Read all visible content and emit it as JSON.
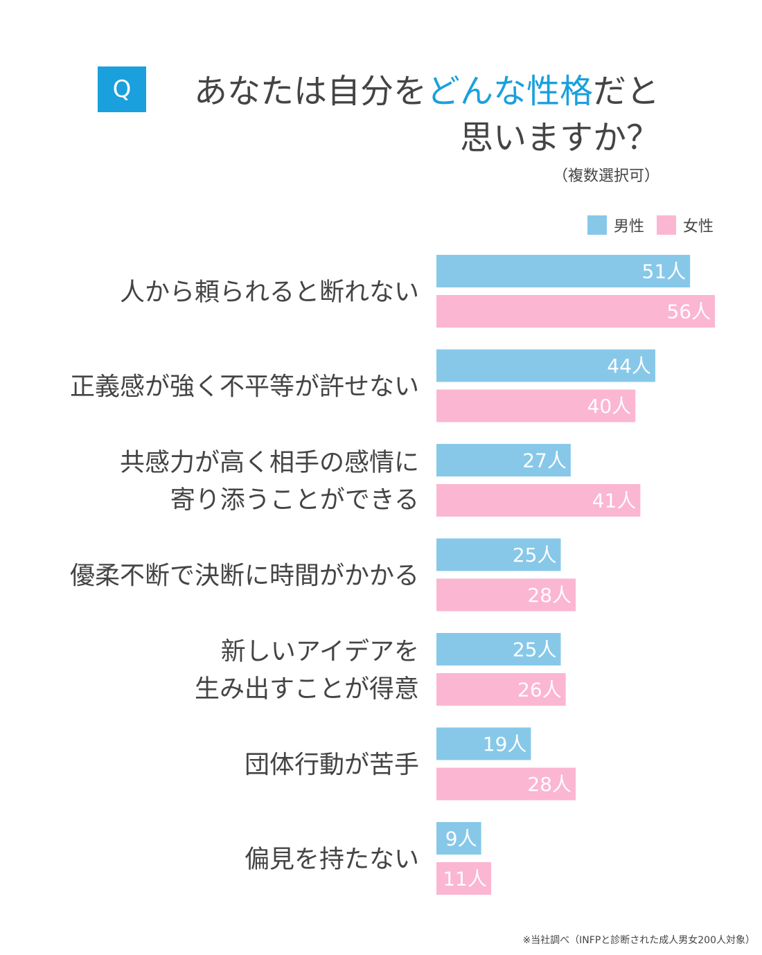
{
  "header": {
    "badge": "Q",
    "title_pre": "あなたは自分を",
    "title_accent": "どんな性格",
    "title_post": "だと",
    "title_line2": "思いますか？",
    "note": "（複数選択可）"
  },
  "legend": {
    "male_label": "男性",
    "female_label": "女性"
  },
  "colors": {
    "male": "#87c8e9",
    "female": "#fbb6d2",
    "accent": "#1aa0dd",
    "text": "#444444"
  },
  "footnote": "※当社調べ（INFPと診断された成人男女200人対象）",
  "chart_data": {
    "type": "bar",
    "orientation": "horizontal",
    "unit": "人",
    "categories": [
      [
        "人から頼られると断れない"
      ],
      [
        "正義感が強く不平等が許せない"
      ],
      [
        "共感力が高く相手の感情に",
        "寄り添うことができる"
      ],
      [
        "優柔不断で決断に時間がかかる"
      ],
      [
        "新しいアイデアを",
        "生み出すことが得意"
      ],
      [
        "団体行動が苦手"
      ],
      [
        "偏見を持たない"
      ]
    ],
    "series": [
      {
        "name": "男性",
        "values": [
          51,
          44,
          27,
          25,
          25,
          19,
          9
        ]
      },
      {
        "name": "女性",
        "values": [
          56,
          40,
          41,
          28,
          26,
          28,
          11
        ]
      }
    ],
    "labels": [
      [
        "51人",
        "44人",
        "27人",
        "25人",
        "25人",
        "19人",
        "9人"
      ],
      [
        "56人",
        "40人",
        "41人",
        "28人",
        "26人",
        "28人",
        "11人"
      ]
    ],
    "xlim": [
      0,
      56
    ],
    "grid": false,
    "legend_position": "top-right"
  }
}
